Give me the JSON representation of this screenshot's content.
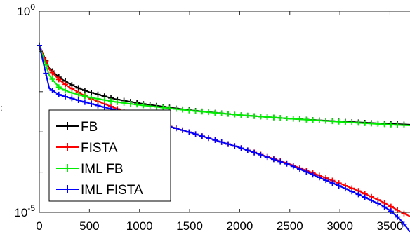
{
  "chart_data": {
    "type": "line",
    "xlim": [
      0,
      3700
    ],
    "ylim_exponent": [
      -5,
      0
    ],
    "yscale": "log",
    "grid": false,
    "legend_position": "bottom-left",
    "x_ticks": [
      0,
      500,
      1000,
      1500,
      2000,
      2500,
      3000,
      3500
    ],
    "x_tick_labels": [
      "0",
      "500",
      "1000",
      "1500",
      "2000",
      "2500",
      "3000",
      "3500"
    ],
    "y_ticks": [
      {
        "base": "10",
        "exp": "0",
        "value": 1
      },
      {
        "base": "10",
        "exp": "-5",
        "value": 1e-05
      }
    ],
    "y_axis_fragment": ":",
    "series": [
      {
        "name": "FB",
        "color": "#000000",
        "x": [
          0,
          100,
          200,
          300,
          400,
          500,
          750,
          1000,
          1500,
          2000,
          2500,
          3000,
          3500,
          3700
        ],
        "y": [
          0.1413,
          0.03802,
          0.02239,
          0.01585,
          0.01202,
          0.009772,
          0.006607,
          0.005129,
          0.003467,
          0.00263,
          0.002138,
          0.00182,
          0.001585,
          0.001514
        ]
      },
      {
        "name": "FISTA",
        "color": "#ff0000",
        "x": [
          0,
          100,
          200,
          300,
          400,
          500,
          750,
          1000,
          1500,
          2000,
          2500,
          3000,
          3200,
          3400,
          3500,
          3600,
          3700
        ],
        "y": [
          0.1413,
          0.03548,
          0.0195,
          0.01288,
          0.009333,
          0.006918,
          0.003981,
          0.002291,
          0.0009772,
          0.0004074,
          0.0001585,
          5.248e-05,
          3.311e-05,
          1.95e-05,
          1.445e-05,
          1.047e-05,
          7.943e-06
        ]
      },
      {
        "name": "IML FB",
        "color": "#00ee00",
        "x": [
          0,
          100,
          200,
          300,
          400,
          500,
          750,
          1000,
          1500,
          2000,
          2500,
          3000,
          3500,
          3700
        ],
        "y": [
          0.1413,
          0.02512,
          0.01259,
          0.009772,
          0.008318,
          0.007244,
          0.005623,
          0.004677,
          0.003388,
          0.00263,
          0.002138,
          0.001778,
          0.001514,
          0.001445
        ]
      },
      {
        "name": "IML FISTA",
        "color": "#0000ff",
        "x": [
          0,
          100,
          200,
          300,
          400,
          500,
          750,
          1000,
          1500,
          2000,
          2500,
          3000,
          3200,
          3400,
          3500,
          3600,
          3700
        ],
        "y": [
          0.1413,
          0.01202,
          0.008318,
          0.007079,
          0.006026,
          0.005129,
          0.003548,
          0.002239,
          0.0009772,
          0.0004074,
          0.0001514,
          4.467e-05,
          2.692e-05,
          1.585e-05,
          1.122e-05,
          6.761e-06,
          3.311e-06
        ]
      }
    ]
  }
}
